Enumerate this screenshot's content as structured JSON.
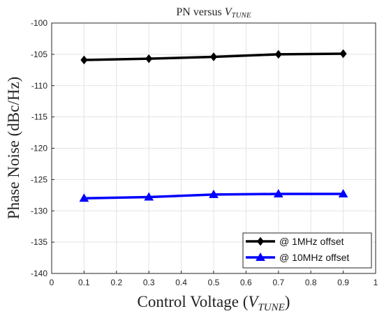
{
  "chart_data": {
    "type": "line",
    "title_prefix": "PN versus ",
    "title_var": "V",
    "title_sub": "TUNE",
    "xlabel_prefix": "Control Voltage (",
    "xlabel_var": "V",
    "xlabel_sub": "TUNE",
    "xlabel_suffix": ")",
    "ylabel": "Phase Noise (dBc/Hz)",
    "xlim": [
      0,
      1
    ],
    "ylim": [
      -140,
      -100
    ],
    "xticks": [
      "0",
      "0.1",
      "0.2",
      "0.3",
      "0.4",
      "0.5",
      "0.6",
      "0.7",
      "0.8",
      "0.9",
      "1"
    ],
    "yticks": [
      "-100",
      "-105",
      "-110",
      "-115",
      "-120",
      "-125",
      "-130",
      "-135",
      "-140"
    ],
    "grid": true,
    "legend_position": "bottom-right",
    "x": [
      0.1,
      0.3,
      0.5,
      0.7,
      0.9
    ],
    "series": [
      {
        "name": "@ 1MHz offset",
        "values": [
          -105.9,
          -105.7,
          -105.4,
          -105.0,
          -104.9
        ],
        "color": "#000000",
        "marker": "diamond"
      },
      {
        "name": "@ 10MHz offset",
        "values": [
          -128.0,
          -127.8,
          -127.4,
          -127.3,
          -127.3
        ],
        "color": "#0000ff",
        "marker": "triangle"
      }
    ]
  }
}
